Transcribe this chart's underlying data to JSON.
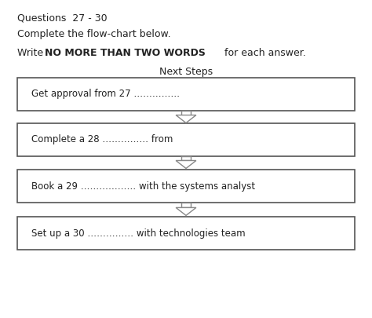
{
  "header1": "Questions  27 - 30",
  "header2": "Complete the flow-chart below.",
  "header3_normal": "Write ",
  "header3_bold": "NO MORE THAN TWO WORDS",
  "header3_end": " for each answer.",
  "subtitle": "Next Steps",
  "boxes": [
    "Get approval from 27 ……………",
    "Complete a 28 …………… from",
    "Book a 29 ……………… with the systems analyst",
    "Set up a 30 …………… with technologies team"
  ],
  "bg_color": "#ffffff",
  "box_edge_color": "#555555",
  "text_color": "#222222",
  "arrow_color": "#888888"
}
